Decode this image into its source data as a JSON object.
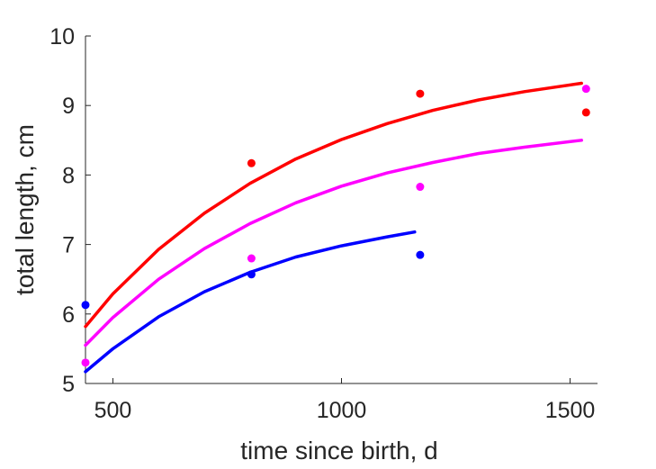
{
  "chart_data": {
    "type": "scatter",
    "xlabel": "time since birth, d",
    "ylabel": "total length, cm",
    "xlim": [
      440,
      1560
    ],
    "ylim": [
      5,
      10
    ],
    "xticks": [
      500,
      1000,
      1500
    ],
    "xtick_labels": [
      "500",
      "1000",
      "1500"
    ],
    "yticks": [
      5,
      6,
      7,
      8,
      9,
      10
    ],
    "ytick_labels": [
      "5",
      "6",
      "7",
      "8",
      "9",
      "10"
    ],
    "grid": false,
    "series": [
      {
        "color": "#ff0000",
        "points": {
          "x": [
            803,
            1172,
            1535
          ],
          "y": [
            8.17,
            9.17,
            8.9
          ]
        },
        "curve": {
          "x": [
            440,
            500,
            600,
            700,
            800,
            900,
            1000,
            1100,
            1200,
            1300,
            1400,
            1525
          ],
          "y": [
            5.82,
            6.29,
            6.93,
            7.45,
            7.88,
            8.23,
            8.51,
            8.74,
            8.93,
            9.08,
            9.2,
            9.32
          ]
        }
      },
      {
        "color": "#ff00ff",
        "points": {
          "x": [
            440,
            803,
            1172,
            1535
          ],
          "y": [
            5.3,
            6.8,
            7.83,
            9.24
          ]
        },
        "curve": {
          "x": [
            440,
            500,
            600,
            700,
            800,
            900,
            1000,
            1100,
            1200,
            1300,
            1400,
            1525
          ],
          "y": [
            5.55,
            5.95,
            6.5,
            6.94,
            7.3,
            7.6,
            7.84,
            8.03,
            8.18,
            8.31,
            8.4,
            8.5
          ]
        }
      },
      {
        "color": "#0000ff",
        "points": {
          "x": [
            440,
            803,
            1172
          ],
          "y": [
            6.13,
            6.57,
            6.85
          ]
        },
        "curve": {
          "x": [
            440,
            500,
            600,
            700,
            800,
            900,
            1000,
            1100,
            1160
          ],
          "y": [
            5.17,
            5.5,
            5.96,
            6.32,
            6.6,
            6.82,
            6.98,
            7.11,
            7.18
          ]
        }
      }
    ]
  }
}
